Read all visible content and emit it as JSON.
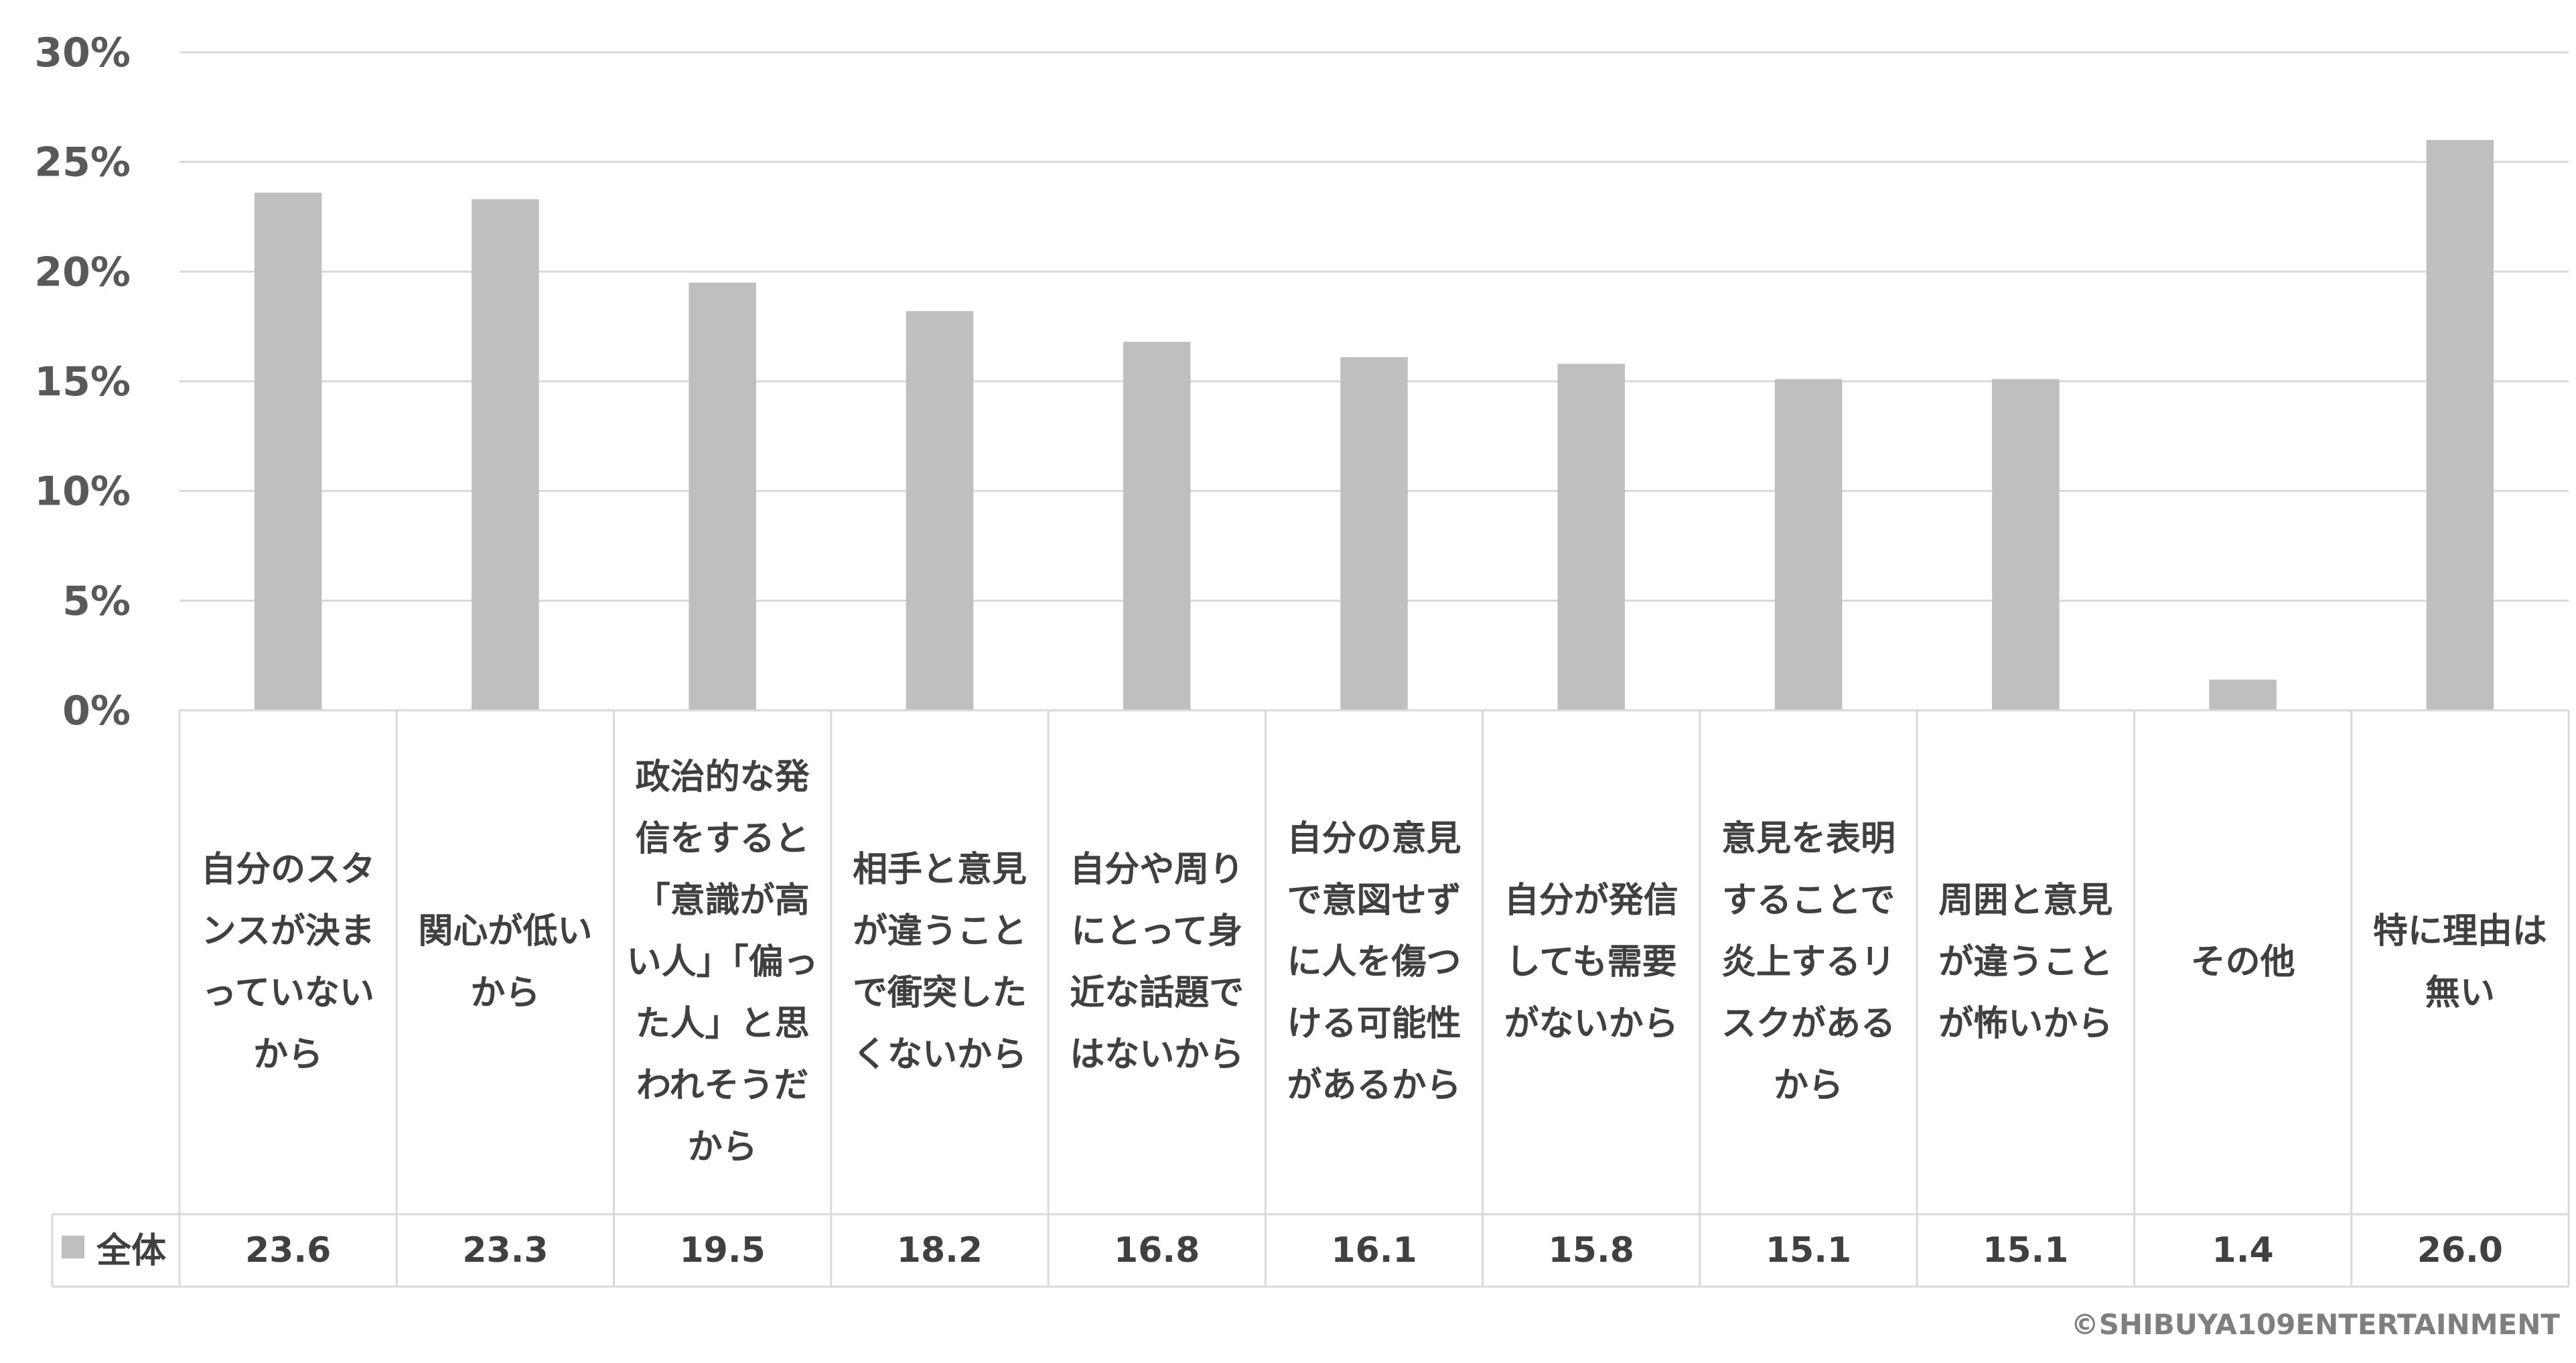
{
  "chart_data": {
    "type": "bar",
    "categories": [
      "自分のスタンスが決まっていないから",
      "関心が低いから",
      "政治的な発信をすると「意識が高い人」「偏った人」と思われそうだから",
      "相手と意見が違うことで衝突したくないから",
      "自分や周りにとって身近な話題ではないから",
      "自分の意見で意図せずに人を傷つける可能性があるから",
      "自分が発信しても需要がないから",
      "意見を表明することで炎上するリスクがあるから",
      "周囲と意見が違うことが怖いから",
      "その他",
      "特に理由は無い"
    ],
    "series": [
      {
        "name": "全体",
        "values": [
          23.6,
          23.3,
          19.5,
          18.2,
          16.8,
          16.1,
          15.8,
          15.1,
          15.1,
          1.4,
          26.0
        ],
        "value_labels": [
          "23.6",
          "23.3",
          "19.5",
          "18.2",
          "16.8",
          "16.1",
          "15.8",
          "15.1",
          "15.1",
          "1.4",
          "26.0"
        ],
        "color": "#bfbfbf"
      }
    ],
    "yticks": [
      "0%",
      "5%",
      "10%",
      "15%",
      "20%",
      "25%",
      "30%"
    ],
    "ylim": [
      0,
      30
    ],
    "grid": true,
    "legend_position": "data-table",
    "data_table": true
  },
  "copyright": "©SHIBUYA109ENTERTAINMENT",
  "colors": {
    "bar": "#bfbfbf",
    "grid": "#d9d9d9",
    "table_border": "#d9d9d9",
    "text": "#404040"
  }
}
